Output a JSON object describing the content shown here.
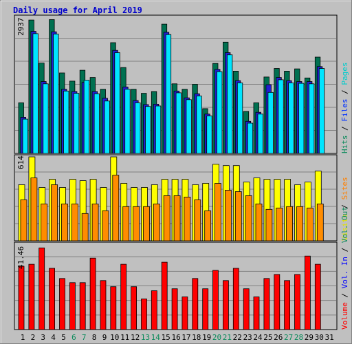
{
  "chart_data": {
    "type": "bar",
    "title": "Daily usage for April 2019",
    "categories": [
      "1",
      "2",
      "3",
      "4",
      "5",
      "6",
      "7",
      "8",
      "9",
      "10",
      "11",
      "12",
      "13",
      "14",
      "15",
      "16",
      "17",
      "18",
      "19",
      "20",
      "21",
      "22",
      "23",
      "24",
      "25",
      "26",
      "27",
      "28",
      "29",
      "30",
      "31"
    ],
    "weekend_days": [
      "6",
      "7",
      "13",
      "14",
      "20",
      "21",
      "27",
      "28"
    ],
    "panels": [
      {
        "id": "hits-files-pages",
        "max_label": "2937",
        "ylim": [
          0,
          2937
        ],
        "side_labels": [
          {
            "text": "Hits",
            "color": "#0a8a5a"
          },
          {
            "text": "Files",
            "color": "#0030ff"
          },
          {
            "text": "Pages",
            "color": "#00cccc"
          }
        ],
        "series": [
          {
            "name": "Hits",
            "color": "#007050",
            "values": [
              1120,
              2950,
              2000,
              2960,
              1780,
              1600,
              1840,
              1680,
              1420,
              2450,
              1900,
              1420,
              1330,
              1370,
              2860,
              1540,
              1420,
              1530,
              990,
              1990,
              2460,
              1820,
              930,
              1120,
              1690,
              1880,
              1820,
              1870,
              1670,
              2130,
              0
            ]
          },
          {
            "name": "Files",
            "color": "#2020d0",
            "values": [
              800,
              2700,
              1590,
              2690,
              1420,
              1370,
              1570,
              1370,
              1220,
              2280,
              1470,
              1170,
              1080,
              1090,
              2680,
              1380,
              1230,
              1320,
              870,
              1860,
              2230,
              1610,
              710,
              910,
              1520,
              1680,
              1610,
              1590,
              1590,
              1920,
              0
            ]
          },
          {
            "name": "Pages",
            "color": "#00e5ff",
            "values": [
              760,
              2650,
              1540,
              2640,
              1380,
              1330,
              1620,
              1320,
              1160,
              2230,
              1420,
              1120,
              1040,
              1050,
              2630,
              1340,
              1190,
              1270,
              830,
              1810,
              2180,
              1560,
              670,
              870,
              1350,
              1630,
              1560,
              1550,
              1540,
              1880,
              0
            ]
          }
        ]
      },
      {
        "id": "visits-sites",
        "max_label": "614",
        "ylim": [
          0,
          614
        ],
        "side_labels": [
          {
            "text": "Visits",
            "color": "#e0e000"
          },
          {
            "text": "Sites",
            "color": "#ff8000"
          }
        ],
        "series": [
          {
            "name": "Visits",
            "color": "#ffff00",
            "values": [
              410,
              614,
              390,
              450,
              390,
              450,
              440,
              450,
              390,
              614,
              420,
              390,
              390,
              410,
              450,
              450,
              450,
              410,
              420,
              560,
              550,
              550,
              430,
              460,
              450,
              450,
              450,
              410,
              430,
              510,
              0
            ]
          },
          {
            "name": "Sites",
            "color": "#ff8c00",
            "values": [
              300,
              460,
              270,
              410,
              270,
              270,
              200,
              270,
              220,
              480,
              250,
              250,
              250,
              270,
              330,
              330,
              320,
              300,
              220,
              420,
              370,
              360,
              330,
              270,
              230,
              240,
              250,
              250,
              240,
              270,
              0
            ]
          }
        ]
      },
      {
        "id": "volume",
        "max_label": "41.46",
        "ylim": [
          0,
          41.46
        ],
        "side_labels": [
          {
            "text": "Volume",
            "color": "#ff0000"
          },
          {
            "text": "Vol. In",
            "color": "#0000ff"
          },
          {
            "text": "Vol. Out",
            "color": "#0a8a5a"
          }
        ],
        "series": [
          {
            "name": "Volume",
            "color": "#ff0000",
            "values": [
              31,
              32,
              40,
              30,
              25,
              23,
              23,
              35,
              24,
              21,
              32,
              21,
              15,
              19,
              33,
              20,
              16,
              25,
              20,
              29,
              24,
              30,
              20,
              16,
              25,
              27,
              24,
              27,
              36,
              32,
              0
            ]
          }
        ]
      }
    ]
  }
}
